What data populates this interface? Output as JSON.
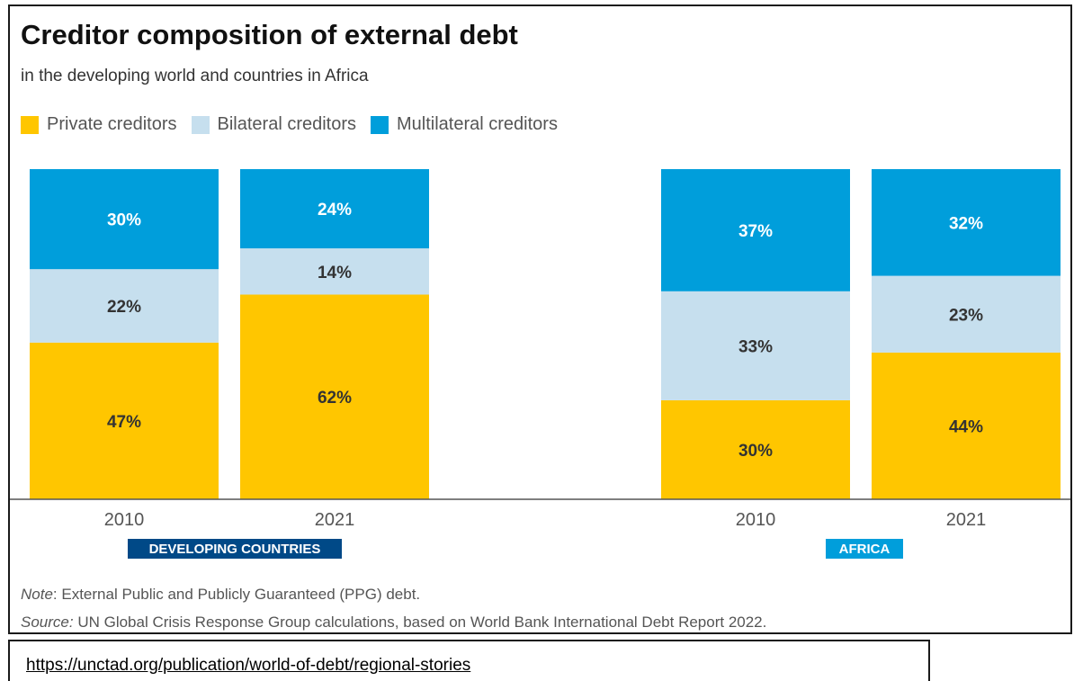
{
  "chart_data": {
    "type": "bar",
    "stacked": true,
    "percent": true,
    "title": "Creditor composition of external debt",
    "subtitle": "in the developing world and countries in Africa",
    "legend_position": "top-left",
    "series": [
      {
        "name": "Private creditors",
        "color": "#FFC600"
      },
      {
        "name": "Bilateral creditors",
        "color": "#C6DFEE"
      },
      {
        "name": "Multilateral creditors",
        "color": "#009EDB"
      }
    ],
    "groups": [
      {
        "label": "DEVELOPING COUNTRIES",
        "label_bg": "#004987",
        "bars": [
          {
            "year": "2010",
            "values": [
              47,
              22,
              30
            ],
            "labels": [
              "47%",
              "22%",
              "30%"
            ]
          },
          {
            "year": "2021",
            "values": [
              62,
              14,
              24
            ],
            "labels": [
              "62%",
              "14%",
              "24%"
            ]
          }
        ]
      },
      {
        "label": "AFRICA",
        "label_bg": "#009EDB",
        "bars": [
          {
            "year": "2010",
            "values": [
              30,
              33,
              37
            ],
            "labels": [
              "30%",
              "33%",
              "37%"
            ]
          },
          {
            "year": "2021",
            "values": [
              44,
              23,
              32
            ],
            "labels": [
              "44%",
              "23%",
              "32%"
            ]
          }
        ]
      }
    ],
    "note_label": "Note",
    "note_text": ": External Public and Publicly Guaranteed (PPG) debt.",
    "source_label": "Source:",
    "source_text": " UN Global Crisis Response Group calculations, based on World Bank International Debt Report 2022."
  },
  "url": "https://unctad.org/publication/world-of-debt/regional-stories"
}
